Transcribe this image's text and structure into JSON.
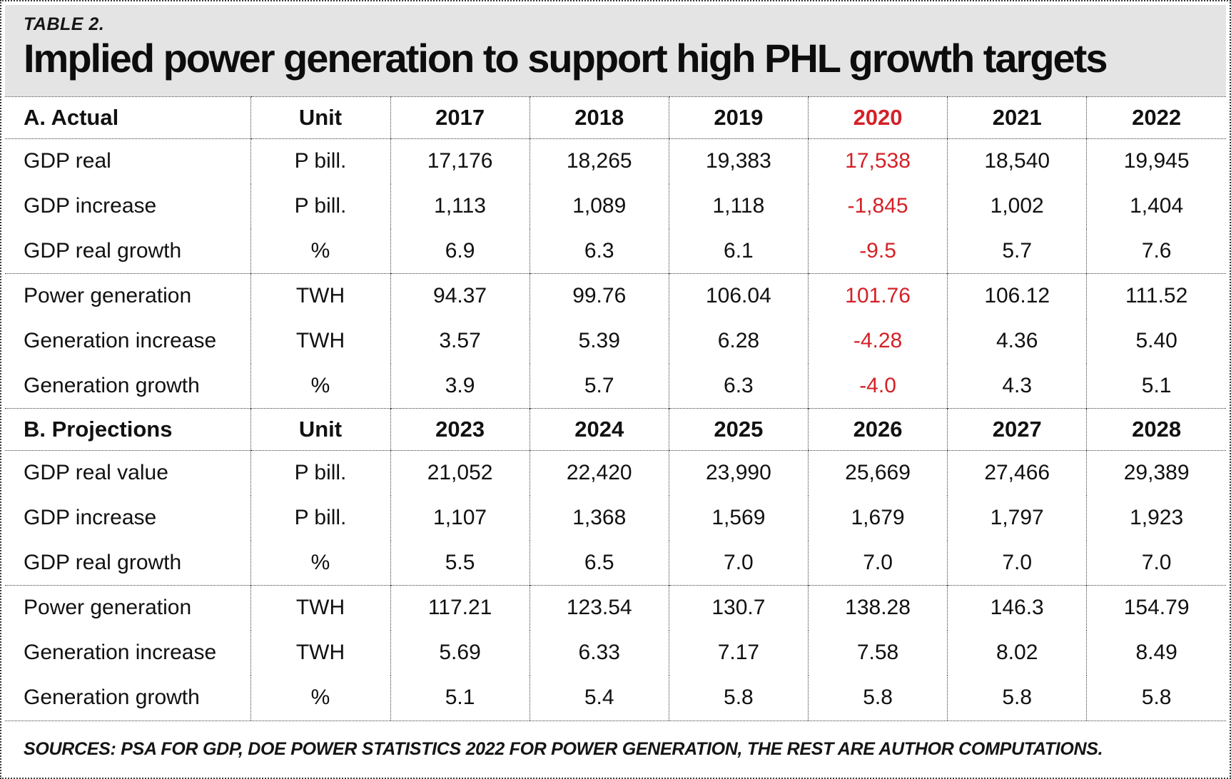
{
  "colors": {
    "highlight_red": "#d42127",
    "header_band_bg": "#e4e4e4",
    "border": "#3c3c3c"
  },
  "header": {
    "table_label": "TABLE 2.",
    "title": "Implied power generation to support high PHL growth targets"
  },
  "footer": {
    "source_note": "SOURCES: PSA FOR GDP, DOE POWER STATISTICS 2022 FOR POWER GENERATION, THE REST ARE AUTHOR COMPUTATIONS."
  },
  "chart_data": {
    "type": "table",
    "title": "Implied power generation to support high PHL growth targets",
    "highlight": {
      "year": "2020",
      "color": "#d42127",
      "note": "2020 column values shown in red"
    },
    "sections": [
      {
        "header": "A. Actual",
        "unit_label": "Unit",
        "years": [
          "2017",
          "2018",
          "2019",
          "2020",
          "2021",
          "2022"
        ],
        "highlight_year": "2020",
        "groups": [
          {
            "rows": [
              {
                "label": "GDP real",
                "unit": "P bill.",
                "values": [
                  "17,176",
                  "18,265",
                  "19,383",
                  "17,538",
                  "18,540",
                  "19,945"
                ]
              },
              {
                "label": "GDP increase",
                "unit": "P bill.",
                "values": [
                  "1,113",
                  "1,089",
                  "1,118",
                  "-1,845",
                  "1,002",
                  "1,404"
                ]
              },
              {
                "label": "GDP real growth",
                "unit": "%",
                "values": [
                  "6.9",
                  "6.3",
                  "6.1",
                  "-9.5",
                  "5.7",
                  "7.6"
                ]
              }
            ]
          },
          {
            "rows": [
              {
                "label": "Power generation",
                "unit": "TWH",
                "values": [
                  "94.37",
                  "99.76",
                  "106.04",
                  "101.76",
                  "106.12",
                  "111.52"
                ]
              },
              {
                "label": "Generation increase",
                "unit": "TWH",
                "values": [
                  "3.57",
                  "5.39",
                  "6.28",
                  "-4.28",
                  "4.36",
                  "5.40"
                ]
              },
              {
                "label": "Generation growth",
                "unit": "%",
                "values": [
                  "3.9",
                  "5.7",
                  "6.3",
                  "-4.0",
                  "4.3",
                  "5.1"
                ]
              }
            ]
          }
        ]
      },
      {
        "header": "B. Projections",
        "unit_label": "Unit",
        "years": [
          "2023",
          "2024",
          "2025",
          "2026",
          "2027",
          "2028"
        ],
        "highlight_year": null,
        "groups": [
          {
            "rows": [
              {
                "label": "GDP real value",
                "unit": "P bill.",
                "values": [
                  "21,052",
                  "22,420",
                  "23,990",
                  "25,669",
                  "27,466",
                  "29,389"
                ]
              },
              {
                "label": "GDP increase",
                "unit": "P bill.",
                "values": [
                  "1,107",
                  "1,368",
                  "1,569",
                  "1,679",
                  "1,797",
                  "1,923"
                ]
              },
              {
                "label": "GDP real growth",
                "unit": "%",
                "values": [
                  "5.5",
                  "6.5",
                  "7.0",
                  "7.0",
                  "7.0",
                  "7.0"
                ]
              }
            ]
          },
          {
            "rows": [
              {
                "label": "Power generation",
                "unit": "TWH",
                "values": [
                  "117.21",
                  "123.54",
                  "130.7",
                  "138.28",
                  "146.3",
                  "154.79"
                ]
              },
              {
                "label": "Generation increase",
                "unit": "TWH",
                "values": [
                  "5.69",
                  "6.33",
                  "7.17",
                  "7.58",
                  "8.02",
                  "8.49"
                ]
              },
              {
                "label": "Generation growth",
                "unit": "%",
                "values": [
                  "5.1",
                  "5.4",
                  "5.8",
                  "5.8",
                  "5.8",
                  "5.8"
                ]
              }
            ]
          }
        ]
      }
    ]
  }
}
